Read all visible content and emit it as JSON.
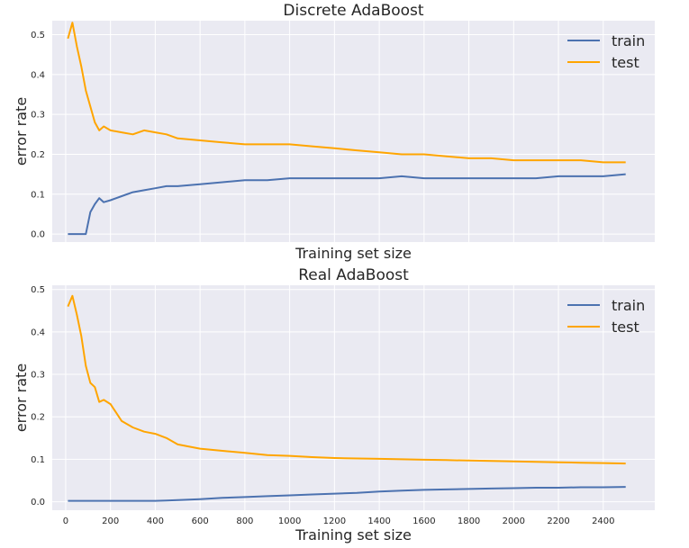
{
  "chart_data": [
    {
      "type": "line",
      "title": "Discrete AdaBoost",
      "xlabel": "Training set size",
      "ylabel": "error rate",
      "xlim": [
        -60,
        2630
      ],
      "ylim": [
        -0.02,
        0.535
      ],
      "xticks": [],
      "yticks": [
        0.0,
        0.1,
        0.2,
        0.3,
        0.4,
        0.5
      ],
      "ytick_labels": [
        "0.0",
        "0.1",
        "0.2",
        "0.3",
        "0.4",
        "0.5"
      ],
      "grid": true,
      "legend_position": "top-right",
      "x": [
        10,
        30,
        50,
        70,
        90,
        110,
        130,
        150,
        170,
        200,
        250,
        300,
        350,
        400,
        450,
        500,
        600,
        700,
        800,
        900,
        1000,
        1100,
        1200,
        1300,
        1400,
        1500,
        1600,
        1700,
        1800,
        1900,
        2000,
        2100,
        2200,
        2300,
        2400,
        2500
      ],
      "series": [
        {
          "name": "train",
          "color": "#4c72b0",
          "values": [
            0.0,
            0.0,
            0.0,
            0.0,
            0.0,
            0.055,
            0.075,
            0.09,
            0.08,
            0.085,
            0.095,
            0.105,
            0.11,
            0.115,
            0.12,
            0.12,
            0.125,
            0.13,
            0.135,
            0.135,
            0.14,
            0.14,
            0.14,
            0.14,
            0.14,
            0.145,
            0.14,
            0.14,
            0.14,
            0.14,
            0.14,
            0.14,
            0.145,
            0.145,
            0.145,
            0.15
          ]
        },
        {
          "name": "test",
          "color": "#ffa500",
          "values": [
            0.49,
            0.53,
            0.47,
            0.42,
            0.36,
            0.32,
            0.28,
            0.26,
            0.27,
            0.26,
            0.255,
            0.25,
            0.26,
            0.255,
            0.25,
            0.24,
            0.235,
            0.23,
            0.225,
            0.225,
            0.225,
            0.22,
            0.215,
            0.21,
            0.205,
            0.2,
            0.2,
            0.195,
            0.19,
            0.19,
            0.185,
            0.185,
            0.185,
            0.185,
            0.18,
            0.18
          ]
        }
      ]
    },
    {
      "type": "line",
      "title": "Real AdaBoost",
      "xlabel": "Training set size",
      "ylabel": "error rate",
      "xlim": [
        -60,
        2630
      ],
      "ylim": [
        -0.02,
        0.51
      ],
      "xticks": [
        0,
        200,
        400,
        600,
        800,
        1000,
        1200,
        1400,
        1600,
        1800,
        2000,
        2200,
        2400
      ],
      "xtick_labels": [
        "0",
        "200",
        "400",
        "600",
        "800",
        "1000",
        "1200",
        "1400",
        "1600",
        "1800",
        "2000",
        "2200",
        "2400"
      ],
      "yticks": [
        0.0,
        0.1,
        0.2,
        0.3,
        0.4,
        0.5
      ],
      "ytick_labels": [
        "0.0",
        "0.1",
        "0.2",
        "0.3",
        "0.4",
        "0.5"
      ],
      "grid": true,
      "legend_position": "top-right",
      "x": [
        10,
        30,
        50,
        70,
        90,
        110,
        130,
        150,
        170,
        200,
        250,
        300,
        350,
        400,
        450,
        500,
        600,
        700,
        800,
        900,
        1000,
        1100,
        1200,
        1300,
        1400,
        1500,
        1600,
        1700,
        1800,
        1900,
        2000,
        2100,
        2200,
        2300,
        2400,
        2500
      ],
      "series": [
        {
          "name": "train",
          "color": "#4c72b0",
          "values": [
            0.002,
            0.002,
            0.002,
            0.002,
            0.002,
            0.002,
            0.002,
            0.002,
            0.002,
            0.002,
            0.002,
            0.002,
            0.002,
            0.002,
            0.003,
            0.004,
            0.006,
            0.009,
            0.011,
            0.013,
            0.015,
            0.017,
            0.019,
            0.021,
            0.024,
            0.026,
            0.028,
            0.029,
            0.03,
            0.031,
            0.032,
            0.033,
            0.033,
            0.034,
            0.034,
            0.035
          ]
        },
        {
          "name": "test",
          "color": "#ffa500",
          "values": [
            0.46,
            0.485,
            0.44,
            0.39,
            0.32,
            0.28,
            0.27,
            0.235,
            0.24,
            0.23,
            0.19,
            0.175,
            0.165,
            0.16,
            0.15,
            0.135,
            0.125,
            0.12,
            0.115,
            0.11,
            0.108,
            0.105,
            0.103,
            0.102,
            0.101,
            0.1,
            0.099,
            0.098,
            0.097,
            0.096,
            0.095,
            0.094,
            0.093,
            0.092,
            0.091,
            0.09
          ]
        }
      ]
    }
  ]
}
